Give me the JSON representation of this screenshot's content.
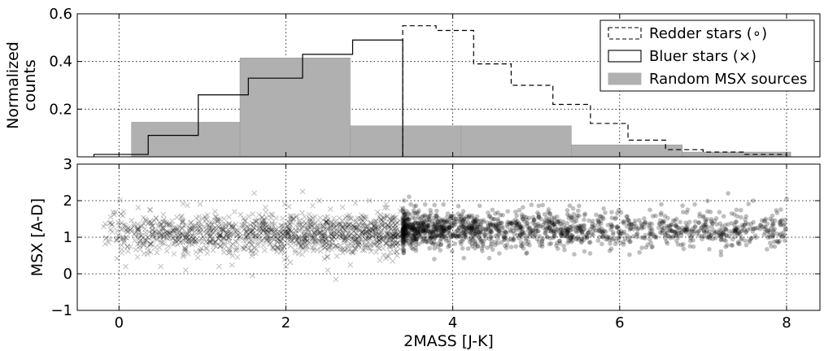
{
  "chart_data": [
    {
      "type": "histogram",
      "xlim": [
        -0.5,
        8.4
      ],
      "ylim": [
        0,
        0.6
      ],
      "yticks": [
        0.2,
        0.4,
        0.6
      ],
      "ytick_labels": [
        "0.2",
        "0.4",
        "0.6"
      ],
      "ylabel": [
        "Normalized",
        "counts"
      ],
      "grid": true,
      "legend_position": "top-right",
      "series": [
        {
          "name": "Redder stars (∘)",
          "style": "step",
          "line": "dashed",
          "color": "#000000",
          "edges": [
            3.4,
            3.8,
            4.25,
            4.7,
            5.2,
            5.65,
            6.1,
            6.55,
            7.0,
            7.5,
            8.0
          ],
          "values": [
            0.55,
            0.53,
            0.39,
            0.3,
            0.22,
            0.14,
            0.07,
            0.03,
            0.02,
            0.01
          ]
        },
        {
          "name": "Bluer stars (×)",
          "style": "step",
          "line": "solid",
          "color": "#000000",
          "edges": [
            -0.3,
            0.35,
            0.95,
            1.55,
            2.2,
            2.8,
            3.4
          ],
          "values": [
            0.01,
            0.09,
            0.26,
            0.33,
            0.43,
            0.49
          ]
        },
        {
          "name": "Random MSX sources",
          "style": "bar",
          "color": "#b0b0b0",
          "edges": [
            0.15,
            1.45,
            2.77,
            4.1,
            5.42,
            6.75,
            8.05
          ],
          "values": [
            0.145,
            0.415,
            0.13,
            0.13,
            0.05,
            0.02
          ]
        }
      ]
    },
    {
      "type": "scatter",
      "xlabel": "2MASS [J-K]",
      "ylabel": "MSX [A-D]",
      "xlim": [
        -0.5,
        8.4
      ],
      "ylim": [
        -1,
        3
      ],
      "xticks": [
        0,
        2,
        4,
        6,
        8
      ],
      "xtick_labels": [
        "0",
        "2",
        "4",
        "6",
        "8"
      ],
      "yticks": [
        -1,
        0,
        1,
        2,
        3
      ],
      "ytick_labels": [
        "−1",
        "0",
        "1",
        "2",
        "3"
      ],
      "grid": true,
      "series": [
        {
          "name": "Bluer stars",
          "marker": "x",
          "color": "#000000",
          "opacity": 0.25,
          "n_points": 1300,
          "x_range": [
            -0.2,
            3.4
          ],
          "y_center": 1.1,
          "y_spread": 0.28,
          "points": [
            [
              -0.1,
              1.55
            ],
            [
              0.05,
              1.0
            ],
            [
              0.1,
              0.75
            ],
            [
              0.3,
              0.55
            ],
            [
              0.5,
              0.2
            ],
            [
              0.8,
              0.1
            ],
            [
              1.2,
              0.2
            ],
            [
              1.6,
              -0.05
            ],
            [
              2.0,
              0.2
            ],
            [
              2.2,
              2.25
            ],
            [
              2.4,
              2.0
            ],
            [
              2.5,
              0.1
            ],
            [
              2.6,
              -0.15
            ],
            [
              3.0,
              2.0
            ],
            [
              3.2,
              1.9
            ]
          ]
        },
        {
          "name": "Redder stars",
          "marker": "o",
          "color": "#000000",
          "opacity": 0.25,
          "n_points": 1500,
          "x_range": [
            3.4,
            8.0
          ],
          "y_center": 1.2,
          "y_spread": 0.25,
          "points": [
            [
              6.5,
              1.9
            ],
            [
              7.0,
              1.55
            ],
            [
              7.2,
              1.2
            ],
            [
              7.4,
              1.75
            ],
            [
              7.6,
              2.0
            ],
            [
              7.8,
              1.0
            ],
            [
              8.0,
              2.05
            ],
            [
              7.3,
              2.2
            ],
            [
              6.9,
              1.9
            ],
            [
              7.5,
              1.35
            ]
          ]
        }
      ]
    }
  ]
}
